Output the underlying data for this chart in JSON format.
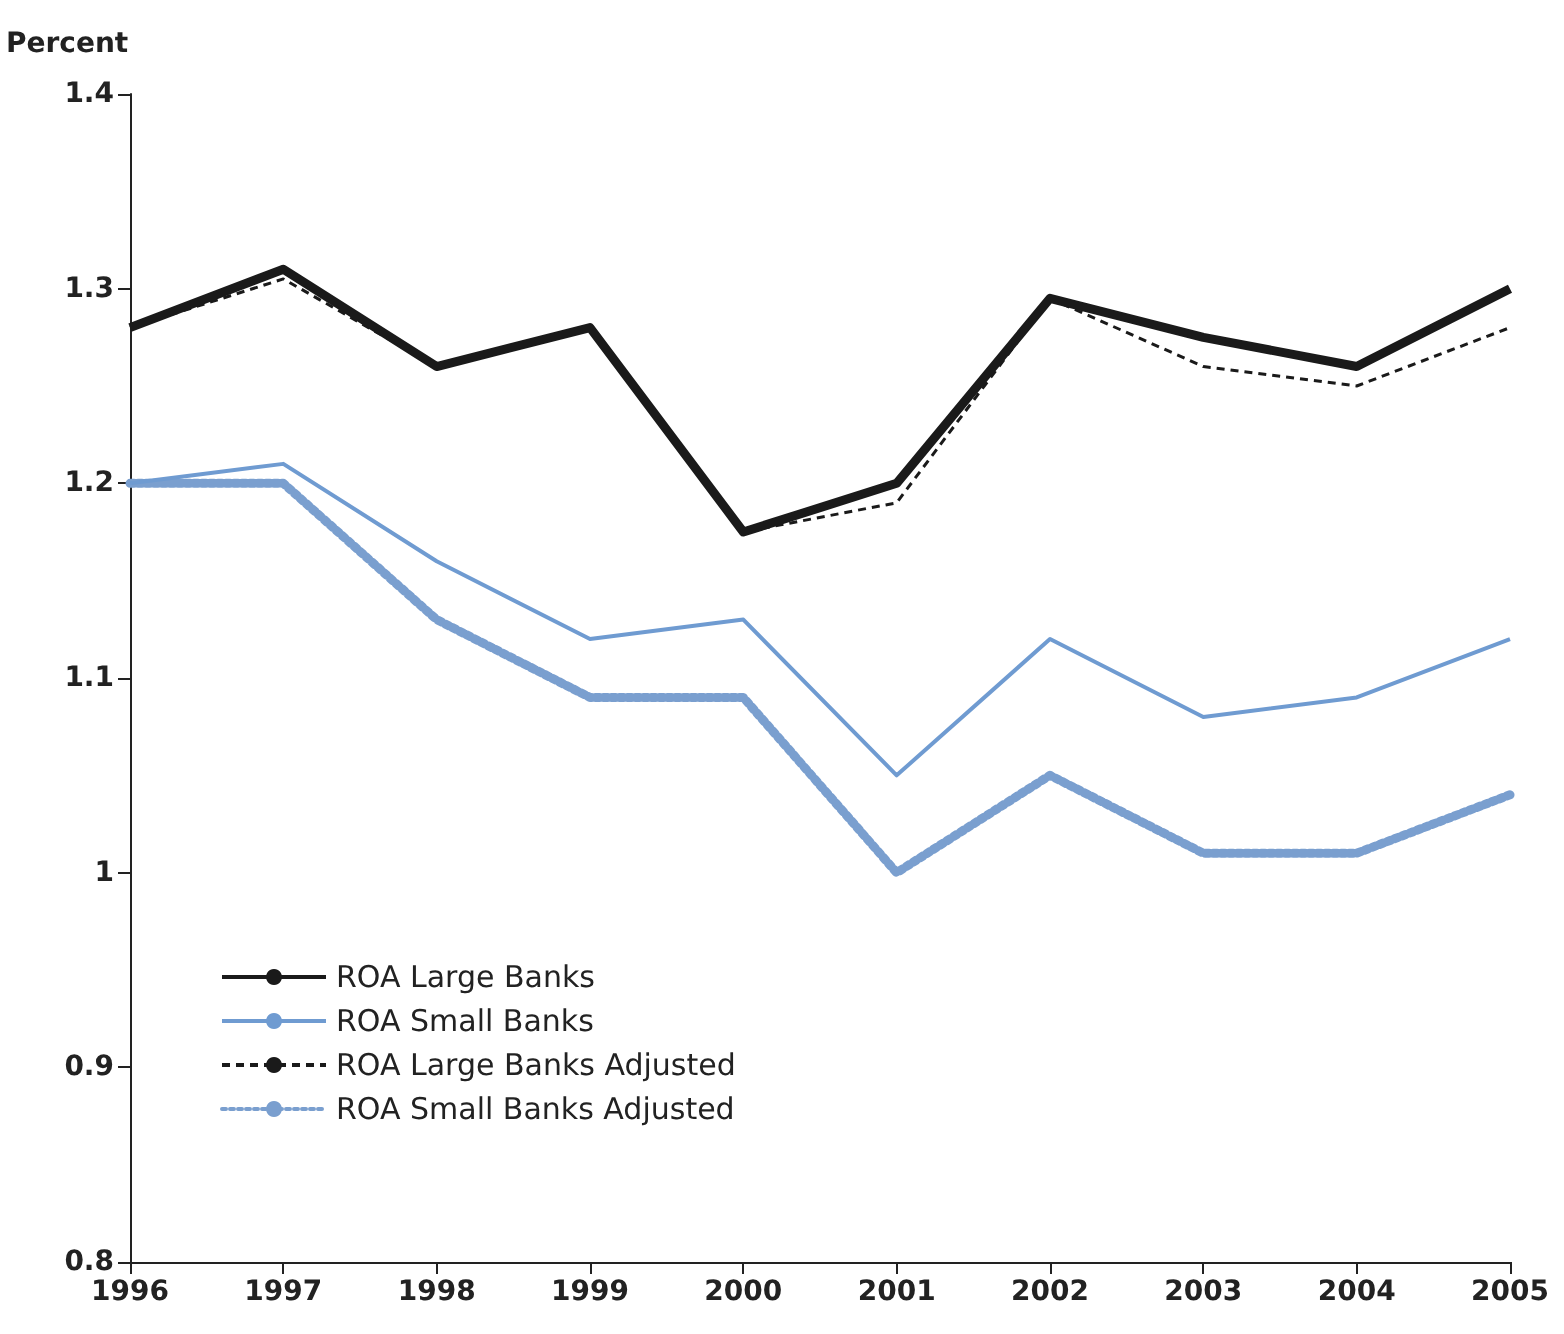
{
  "chart_data": {
    "type": "line",
    "ylabel": "Percent",
    "categories": [
      "1996",
      "1997",
      "1998",
      "1999",
      "2000",
      "2001",
      "2002",
      "2003",
      "2004",
      "2005"
    ],
    "series": [
      {
        "name": "ROA Large Banks",
        "color": "#1a1a1a",
        "line_style": "solid",
        "values": [
          1.28,
          1.31,
          1.26,
          1.28,
          1.175,
          1.2,
          1.295,
          1.275,
          1.26,
          1.3
        ]
      },
      {
        "name": "ROA Small Banks",
        "color": "#6f9bd1",
        "line_style": "solid",
        "values": [
          1.2,
          1.21,
          1.16,
          1.12,
          1.13,
          1.05,
          1.12,
          1.08,
          1.09,
          1.12
        ]
      },
      {
        "name": "ROA Large Banks Adjusted",
        "color": "#1a1a1a",
        "line_style": "dashed",
        "values": [
          1.28,
          1.305,
          1.26,
          1.28,
          1.175,
          1.19,
          1.295,
          1.26,
          1.25,
          1.28
        ]
      },
      {
        "name": "ROA Small Banks Adjusted",
        "color": "#7a9fcf",
        "line_style": "dotted",
        "values": [
          1.2,
          1.2,
          1.13,
          1.09,
          1.09,
          1.0,
          1.05,
          1.01,
          1.01,
          1.04
        ]
      }
    ],
    "ylim": [
      0.8,
      1.4
    ],
    "yticks": [
      0.8,
      0.9,
      1,
      1.1,
      1.2,
      1.3,
      1.4
    ],
    "grid": false,
    "legend": "bottom left",
    "marker": "none"
  }
}
